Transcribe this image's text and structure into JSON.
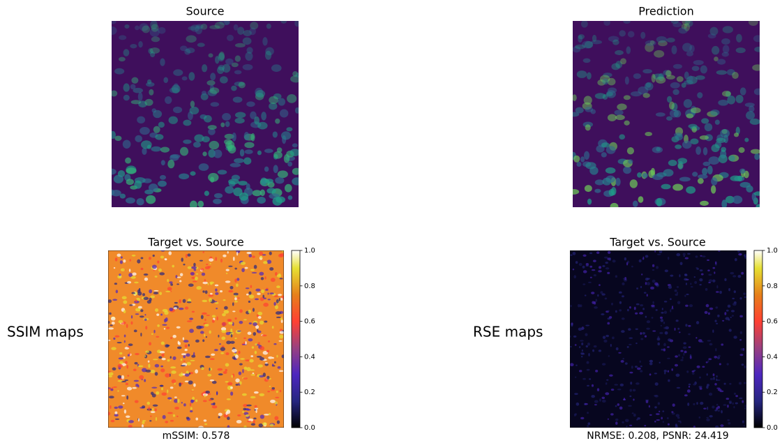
{
  "panels": [
    {
      "title": "Source"
    },
    {
      "title": "Prediction"
    },
    {
      "title": "Target vs. Source",
      "row_label": "SSIM maps",
      "caption": "mSSIM: 0.578"
    },
    {
      "title": "Target vs. Source",
      "row_label": "RSE maps",
      "caption": "NRMSE: 0.208, PSNR: 24.419"
    }
  ],
  "colorbar": {
    "lim": [
      0,
      1
    ],
    "ticks": [
      {
        "value": 0,
        "label": "0.0"
      },
      {
        "value": 0.2,
        "label": "0.2"
      },
      {
        "value": 0.4,
        "label": "0.4"
      },
      {
        "value": 0.6,
        "label": "0.6"
      },
      {
        "value": 0.8,
        "label": "0.8"
      },
      {
        "value": 1,
        "label": "1.0"
      }
    ]
  }
}
